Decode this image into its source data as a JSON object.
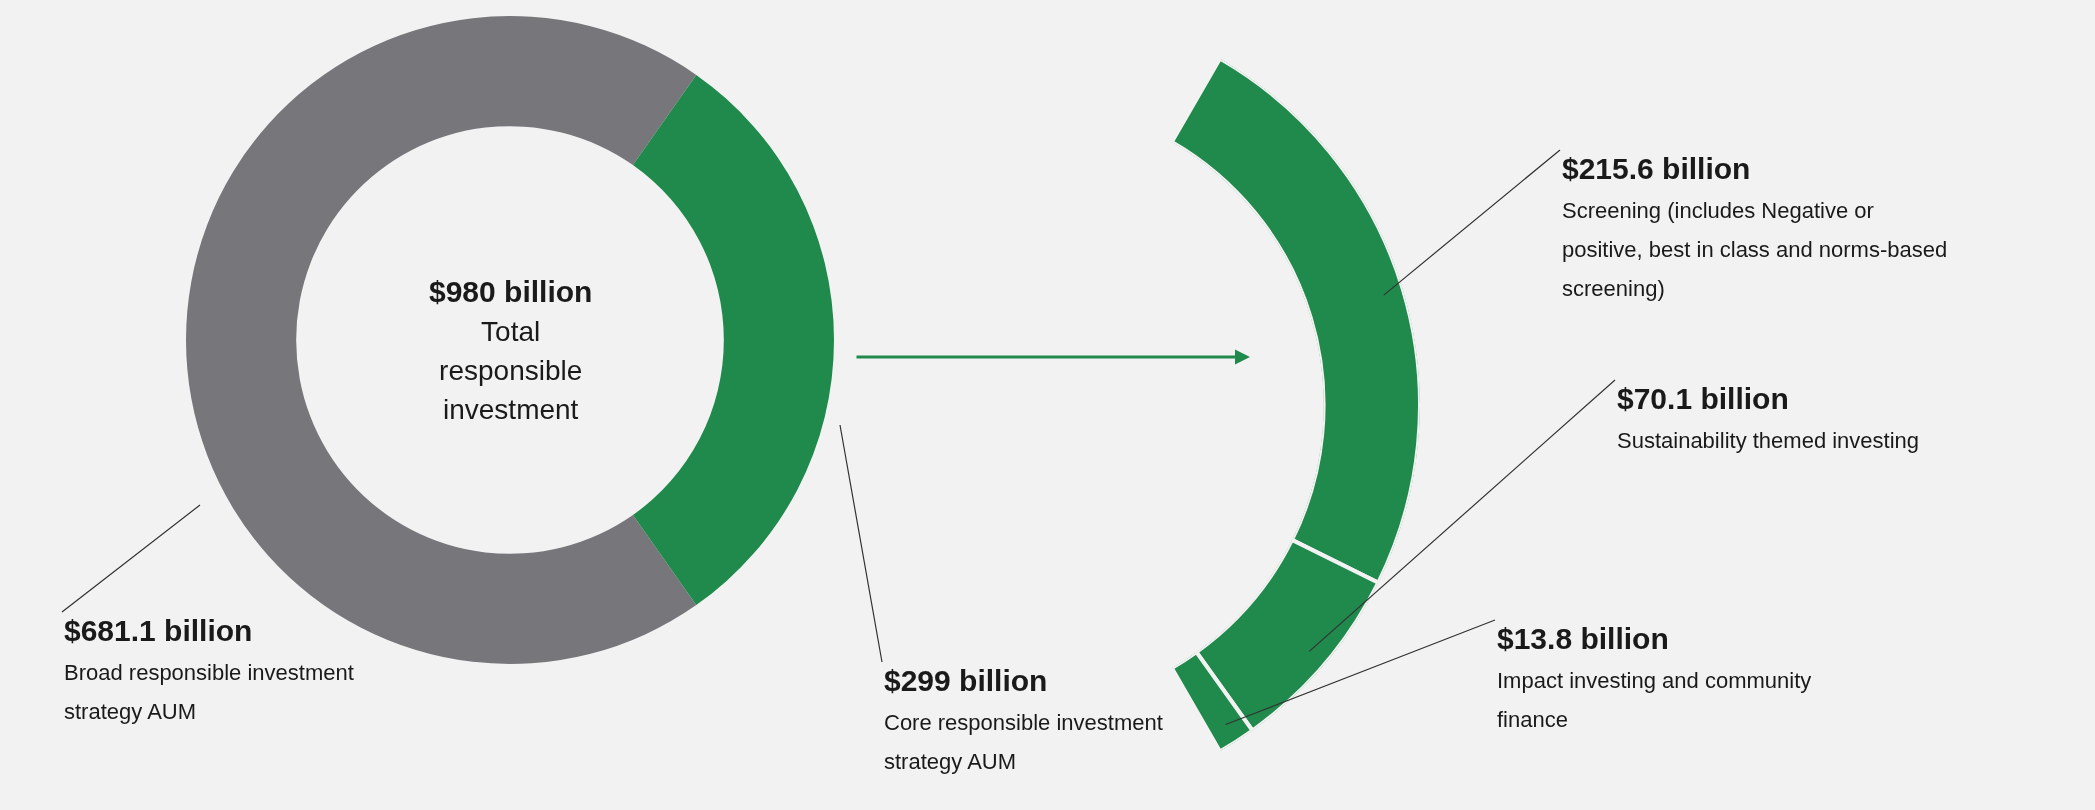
{
  "chart_data": [
    {
      "type": "donut",
      "categories": [
        "Broad responsible investment strategy AUM",
        "Core responsible investment strategy AUM"
      ],
      "values": [
        681.1,
        299
      ],
      "colors": [
        "#77767b",
        "#1f8a4b"
      ],
      "value_labels": [
        "$681.1 billion",
        "$299 billion"
      ],
      "annotations": [
        "$980 billion",
        "Total responsible investment"
      ]
    },
    {
      "type": "donut",
      "categories": [
        "Screening (includes Negative or positive, best in class and norms-based screening)",
        "Sustainability themed investing",
        "Impact investing and community finance"
      ],
      "values": [
        215.6,
        70.1,
        13.8
      ],
      "colors": [
        "#1f8a4b",
        "#1f8a4b",
        "#1f8a4b"
      ],
      "value_labels": [
        "$215.6 billion",
        "$70.1 billion",
        "$13.8 billion"
      ]
    }
  ]
}
